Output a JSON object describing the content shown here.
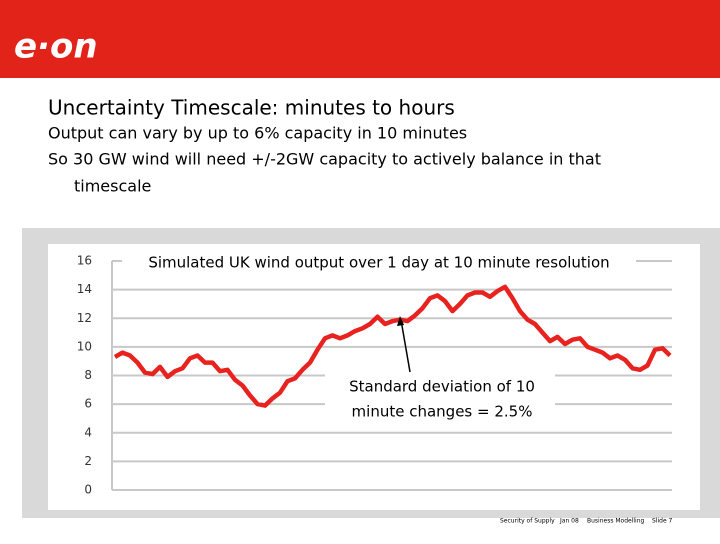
{
  "slide": {
    "logo": "e·on",
    "title": "Uncertainty Timescale: minutes to hours",
    "lines": [
      "Output can vary by up to 6% capacity in 10 minutes",
      "So 30 GW wind will need +/-2GW capacity to actively balance in that",
      "timescale"
    ],
    "footer": [
      "Security of Supply",
      "Jan 08",
      "Business Modelling",
      "Slide 7"
    ]
  },
  "chart_data": {
    "type": "line",
    "title": "Simulated UK wind output over 1 day at 10 minute resolution",
    "annotation": [
      "Standard deviation of 10",
      "minute changes = 2.5%"
    ],
    "color": "#e8231f",
    "ylim": [
      0,
      16
    ],
    "yticks": [
      0,
      2,
      4,
      6,
      8,
      10,
      12,
      14,
      16
    ],
    "grid": true,
    "values": [
      9.3,
      9.6,
      9.4,
      8.9,
      8.2,
      8.1,
      8.6,
      7.9,
      8.3,
      8.5,
      9.2,
      9.4,
      8.9,
      8.9,
      8.3,
      8.4,
      7.7,
      7.3,
      6.6,
      6.0,
      5.9,
      6.4,
      6.8,
      7.6,
      7.8,
      8.4,
      8.9,
      9.8,
      10.6,
      10.8,
      10.6,
      10.8,
      11.1,
      11.3,
      11.6,
      12.1,
      11.6,
      11.8,
      11.9,
      11.8,
      12.2,
      12.7,
      13.4,
      13.6,
      13.2,
      12.5,
      13.0,
      13.6,
      13.8,
      13.8,
      13.5,
      13.9,
      14.2,
      13.4,
      12.5,
      11.9,
      11.6,
      11.0,
      10.4,
      10.7,
      10.2,
      10.5,
      10.6,
      10.0,
      9.8,
      9.6,
      9.2,
      9.4,
      9.1,
      8.5,
      8.4,
      8.7,
      9.8,
      9.9,
      9.4
    ]
  }
}
